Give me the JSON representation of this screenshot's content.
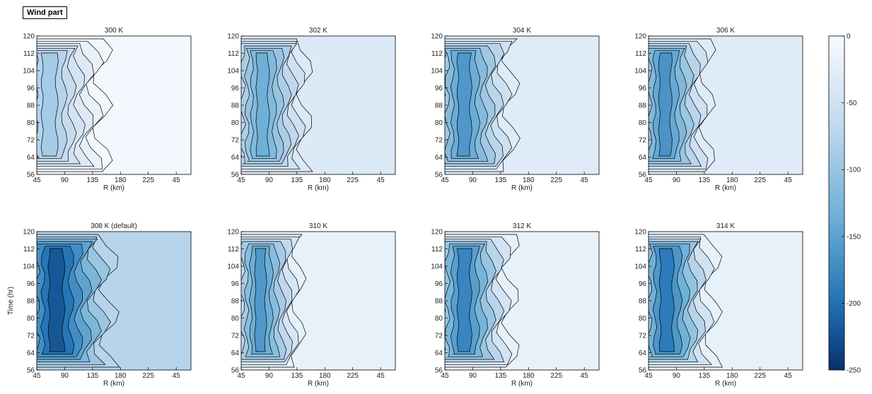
{
  "figure_label": "Wind part",
  "colors": {
    "cmap_low": "#08306b",
    "cmap_mid1": "#2171b5",
    "cmap_mid2": "#6baed6",
    "cmap_mid3": "#c6dbef",
    "cmap_high": "#f7fbff",
    "contour_line": "#000000"
  },
  "chart_data": [
    {
      "type": "heatmap",
      "title": "300 K",
      "xlabel": "R (km)",
      "ylabel": "",
      "x_ticks": [
        "45",
        "90",
        "135",
        "180",
        "225",
        "45"
      ],
      "y_ticks": [
        "56",
        "64",
        "72",
        "80",
        "88",
        "96",
        "104",
        "112",
        "120"
      ],
      "ylim": [
        56,
        120
      ],
      "background_value": -5,
      "core_value": -90,
      "core_center_x": 52,
      "core_width": 25,
      "band_gap": 0,
      "clim": [
        -250,
        0
      ]
    },
    {
      "type": "heatmap",
      "title": "302 K",
      "xlabel": "R (km)",
      "ylabel": "",
      "x_ticks": [
        "45",
        "90",
        "135",
        "180",
        "225",
        "45"
      ],
      "y_ticks": [
        "56",
        "64",
        "72",
        "80",
        "88",
        "96",
        "104",
        "112",
        "120"
      ],
      "ylim": [
        56,
        120
      ],
      "background_value": -35,
      "core_value": -135,
      "core_center_x": 65,
      "core_width": 20,
      "band_gap": 0,
      "clim": [
        -250,
        0
      ]
    },
    {
      "type": "heatmap",
      "title": "304 K",
      "xlabel": "R (km)",
      "ylabel": "",
      "x_ticks": [
        "45",
        "90",
        "135",
        "180",
        "225",
        "45"
      ],
      "y_ticks": [
        "56",
        "64",
        "72",
        "80",
        "88",
        "96",
        "104",
        "112",
        "120"
      ],
      "ylim": [
        56,
        120
      ],
      "background_value": -30,
      "core_value": -160,
      "core_center_x": 62,
      "core_width": 22,
      "band_gap": 0,
      "clim": [
        -250,
        0
      ]
    },
    {
      "type": "heatmap",
      "title": "306 K",
      "xlabel": "R (km)",
      "ylabel": "",
      "x_ticks": [
        "45",
        "90",
        "135",
        "180",
        "225",
        "45"
      ],
      "y_ticks": [
        "56",
        "64",
        "72",
        "80",
        "88",
        "96",
        "104",
        "112",
        "120"
      ],
      "ylim": [
        56,
        120
      ],
      "background_value": -30,
      "core_value": -165,
      "core_center_x": 58,
      "core_width": 20,
      "band_gap": 0,
      "clim": [
        -250,
        0
      ]
    },
    {
      "type": "heatmap",
      "title": "308 K (default)",
      "xlabel": "R (km)",
      "ylabel": "Time (hr)",
      "x_ticks": [
        "45",
        "90",
        "135",
        "180",
        "225",
        "45"
      ],
      "y_ticks": [
        "56",
        "64",
        "72",
        "80",
        "88",
        "96",
        "104",
        "112",
        "120"
      ],
      "ylim": [
        56,
        120
      ],
      "background_value": -75,
      "core_value": -220,
      "core_center_x": 62,
      "core_width": 25,
      "band_gap": 0,
      "clim": [
        -250,
        0
      ]
    },
    {
      "type": "heatmap",
      "title": "310 K",
      "xlabel": "R (km)",
      "ylabel": "",
      "x_ticks": [
        "45",
        "90",
        "135",
        "180",
        "225",
        "45"
      ],
      "y_ticks": [
        "56",
        "64",
        "72",
        "80",
        "88",
        "96",
        "104",
        "112",
        "120"
      ],
      "ylim": [
        56,
        120
      ],
      "background_value": -20,
      "core_value": -160,
      "core_center_x": 62,
      "core_width": 18,
      "band_gap": 0,
      "clim": [
        -250,
        0
      ]
    },
    {
      "type": "heatmap",
      "title": "312 K",
      "xlabel": "R (km)",
      "ylabel": "",
      "x_ticks": [
        "45",
        "90",
        "135",
        "180",
        "225",
        "45"
      ],
      "y_ticks": [
        "56",
        "64",
        "72",
        "80",
        "88",
        "96",
        "104",
        "112",
        "120"
      ],
      "ylim": [
        56,
        120
      ],
      "background_value": -20,
      "core_value": -180,
      "core_center_x": 62,
      "core_width": 22,
      "band_gap": 0,
      "clim": [
        -250,
        0
      ]
    },
    {
      "type": "heatmap",
      "title": "314 K",
      "xlabel": "R (km)",
      "ylabel": "",
      "x_ticks": [
        "45",
        "90",
        "135",
        "180",
        "225",
        "45"
      ],
      "y_ticks": [
        "56",
        "64",
        "72",
        "80",
        "88",
        "96",
        "104",
        "112",
        "120"
      ],
      "ylim": [
        56,
        120
      ],
      "background_value": -20,
      "core_value": -190,
      "core_center_x": 60,
      "core_width": 22,
      "band_gap": 0,
      "clim": [
        -250,
        0
      ]
    }
  ],
  "colorbar": {
    "ticks": [
      "0",
      "-50",
      "-100",
      "-150",
      "-200",
      "-250"
    ],
    "values": [
      0,
      -50,
      -100,
      -150,
      -200,
      -250
    ],
    "range": [
      -250,
      0
    ]
  }
}
